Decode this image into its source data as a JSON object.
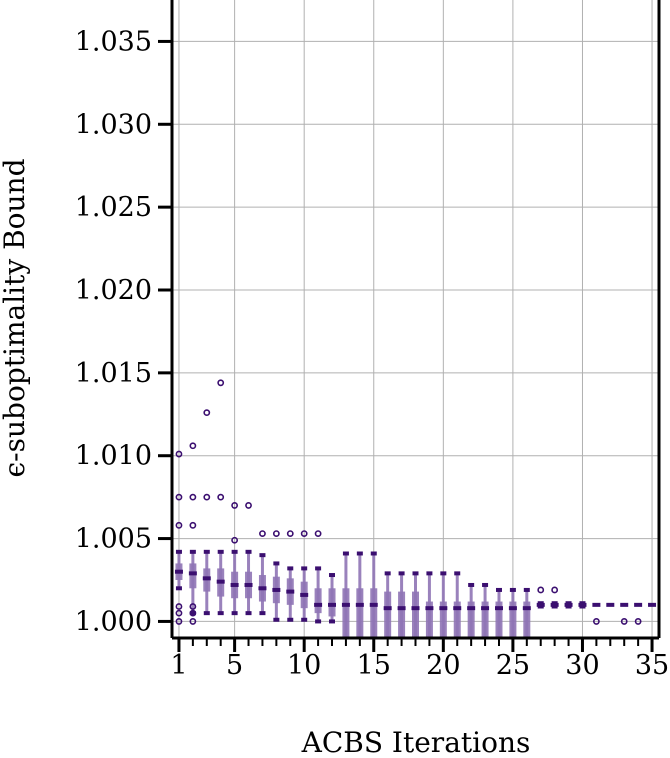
{
  "chart_data": {
    "type": "box",
    "title": "",
    "xlabel": "ACBS Iterations",
    "ylabel": "ϵ-suboptimality Bound",
    "xlim": [
      0.5,
      35.5
    ],
    "ylim": [
      0.999,
      1.0375
    ],
    "grid": true,
    "color": "#3b0f70",
    "fill_color": "#8f74b5",
    "x_ticks": [
      1,
      5,
      10,
      15,
      20,
      25,
      30,
      35
    ],
    "x_tick_labels": [
      "1",
      "5",
      "10",
      "15",
      "20",
      "25",
      "30",
      "35"
    ],
    "y_ticks": [
      1.0,
      1.005,
      1.01,
      1.015,
      1.02,
      1.025,
      1.03,
      1.035
    ],
    "y_tick_labels": [
      "1.000",
      "1.005",
      "1.010",
      "1.015",
      "1.020",
      "1.025",
      "1.030",
      "1.035"
    ],
    "boxes": [
      {
        "x": 1,
        "whisker_low": 1.002,
        "q1": 1.0025,
        "median": 1.003,
        "q3": 1.0035,
        "whisker_high": 1.0042,
        "outliers": [
          1.0101,
          1.0075,
          1.0058,
          1.0009,
          1.0005,
          1.0
        ]
      },
      {
        "x": 2,
        "whisker_low": 1.0005,
        "q1": 1.002,
        "median": 1.0029,
        "q3": 1.0035,
        "whisker_high": 1.0042,
        "outliers": [
          1.0106,
          1.0075,
          1.0058,
          1.0009,
          1.0005,
          1.0
        ]
      },
      {
        "x": 3,
        "whisker_low": 1.0005,
        "q1": 1.0018,
        "median": 1.0026,
        "q3": 1.0032,
        "whisker_high": 1.0042,
        "outliers": [
          1.0126,
          1.0075
        ]
      },
      {
        "x": 4,
        "whisker_low": 1.0005,
        "q1": 1.0015,
        "median": 1.0024,
        "q3": 1.0032,
        "whisker_high": 1.0042,
        "outliers": [
          1.0144,
          1.0075
        ]
      },
      {
        "x": 5,
        "whisker_low": 1.0005,
        "q1": 1.0014,
        "median": 1.0022,
        "q3": 1.003,
        "whisker_high": 1.0042,
        "outliers": [
          1.007,
          1.0049
        ]
      },
      {
        "x": 6,
        "whisker_low": 1.0005,
        "q1": 1.0014,
        "median": 1.0022,
        "q3": 1.003,
        "whisker_high": 1.0042,
        "outliers": [
          1.007
        ]
      },
      {
        "x": 7,
        "whisker_low": 1.0005,
        "q1": 1.0012,
        "median": 1.002,
        "q3": 1.0028,
        "whisker_high": 1.004,
        "outliers": [
          1.0053
        ]
      },
      {
        "x": 8,
        "whisker_low": 1.0001,
        "q1": 1.0011,
        "median": 1.0019,
        "q3": 1.0027,
        "whisker_high": 1.0035,
        "outliers": [
          1.0053
        ]
      },
      {
        "x": 9,
        "whisker_low": 1.0001,
        "q1": 1.001,
        "median": 1.0018,
        "q3": 1.0026,
        "whisker_high": 1.0032,
        "outliers": [
          1.0053
        ]
      },
      {
        "x": 10,
        "whisker_low": 1.0001,
        "q1": 1.0008,
        "median": 1.0016,
        "q3": 1.0024,
        "whisker_high": 1.0032,
        "outliers": [
          1.0053
        ]
      },
      {
        "x": 11,
        "whisker_low": 1.0,
        "q1": 1.0005,
        "median": 1.001,
        "q3": 1.002,
        "whisker_high": 1.0032,
        "outliers": [
          1.0053
        ]
      },
      {
        "x": 12,
        "whisker_low": 1.0,
        "q1": 1.0003,
        "median": 1.001,
        "q3": 1.002,
        "whisker_high": 1.0028,
        "outliers": []
      },
      {
        "x": 13,
        "whisker_low": 0.999,
        "q1": 0.999,
        "median": 1.001,
        "q3": 1.002,
        "whisker_high": 1.0041,
        "outliers": []
      },
      {
        "x": 14,
        "whisker_low": 0.999,
        "q1": 0.999,
        "median": 1.001,
        "q3": 1.002,
        "whisker_high": 1.0041,
        "outliers": []
      },
      {
        "x": 15,
        "whisker_low": 0.999,
        "q1": 0.999,
        "median": 1.001,
        "q3": 1.002,
        "whisker_high": 1.0041,
        "outliers": []
      },
      {
        "x": 16,
        "whisker_low": 0.999,
        "q1": 0.999,
        "median": 1.0008,
        "q3": 1.0018,
        "whisker_high": 1.0029,
        "outliers": []
      },
      {
        "x": 17,
        "whisker_low": 0.999,
        "q1": 0.999,
        "median": 1.0008,
        "q3": 1.0018,
        "whisker_high": 1.0029,
        "outliers": []
      },
      {
        "x": 18,
        "whisker_low": 0.999,
        "q1": 0.999,
        "median": 1.0008,
        "q3": 1.0018,
        "whisker_high": 1.0029,
        "outliers": []
      },
      {
        "x": 19,
        "whisker_low": 0.999,
        "q1": 0.999,
        "median": 1.0008,
        "q3": 1.0012,
        "whisker_high": 1.0029,
        "outliers": []
      },
      {
        "x": 20,
        "whisker_low": 0.999,
        "q1": 0.999,
        "median": 1.0008,
        "q3": 1.0012,
        "whisker_high": 1.0029,
        "outliers": []
      },
      {
        "x": 21,
        "whisker_low": 0.999,
        "q1": 0.999,
        "median": 1.0008,
        "q3": 1.0012,
        "whisker_high": 1.0029,
        "outliers": []
      },
      {
        "x": 22,
        "whisker_low": 0.999,
        "q1": 0.999,
        "median": 1.0008,
        "q3": 1.0012,
        "whisker_high": 1.0022,
        "outliers": []
      },
      {
        "x": 23,
        "whisker_low": 0.999,
        "q1": 0.999,
        "median": 1.0008,
        "q3": 1.0012,
        "whisker_high": 1.0022,
        "outliers": []
      },
      {
        "x": 24,
        "whisker_low": 0.999,
        "q1": 0.999,
        "median": 1.0008,
        "q3": 1.0012,
        "whisker_high": 1.0019,
        "outliers": []
      },
      {
        "x": 25,
        "whisker_low": 0.999,
        "q1": 0.999,
        "median": 1.0008,
        "q3": 1.0012,
        "whisker_high": 1.0019,
        "outliers": []
      },
      {
        "x": 26,
        "whisker_low": 0.999,
        "q1": 0.999,
        "median": 1.0008,
        "q3": 1.0012,
        "whisker_high": 1.0019,
        "outliers": []
      },
      {
        "x": 27,
        "whisker_low": 1.0009,
        "q1": 1.0009,
        "median": 1.001,
        "q3": 1.0011,
        "whisker_high": 1.0011,
        "outliers": [
          1.0019
        ]
      },
      {
        "x": 28,
        "whisker_low": 1.0009,
        "q1": 1.0009,
        "median": 1.001,
        "q3": 1.0011,
        "whisker_high": 1.0011,
        "outliers": [
          1.0019
        ]
      },
      {
        "x": 29,
        "whisker_low": 1.0009,
        "q1": 1.0009,
        "median": 1.001,
        "q3": 1.0011,
        "whisker_high": 1.0011,
        "outliers": []
      },
      {
        "x": 30,
        "whisker_low": 1.0009,
        "q1": 1.0009,
        "median": 1.001,
        "q3": 1.0011,
        "whisker_high": 1.0011,
        "outliers": []
      },
      {
        "x": 31,
        "whisker_low": 1.001,
        "q1": 1.001,
        "median": 1.001,
        "q3": 1.001,
        "whisker_high": 1.001,
        "outliers": [
          1.0
        ]
      },
      {
        "x": 32,
        "whisker_low": 1.001,
        "q1": 1.001,
        "median": 1.001,
        "q3": 1.001,
        "whisker_high": 1.001,
        "outliers": []
      },
      {
        "x": 33,
        "whisker_low": 1.001,
        "q1": 1.001,
        "median": 1.001,
        "q3": 1.001,
        "whisker_high": 1.001,
        "outliers": [
          1.0
        ]
      },
      {
        "x": 34,
        "whisker_low": 1.001,
        "q1": 1.001,
        "median": 1.001,
        "q3": 1.001,
        "whisker_high": 1.001,
        "outliers": [
          1.0
        ]
      },
      {
        "x": 35,
        "whisker_low": 1.001,
        "q1": 1.001,
        "median": 1.001,
        "q3": 1.001,
        "whisker_high": 1.001,
        "outliers": []
      }
    ]
  }
}
